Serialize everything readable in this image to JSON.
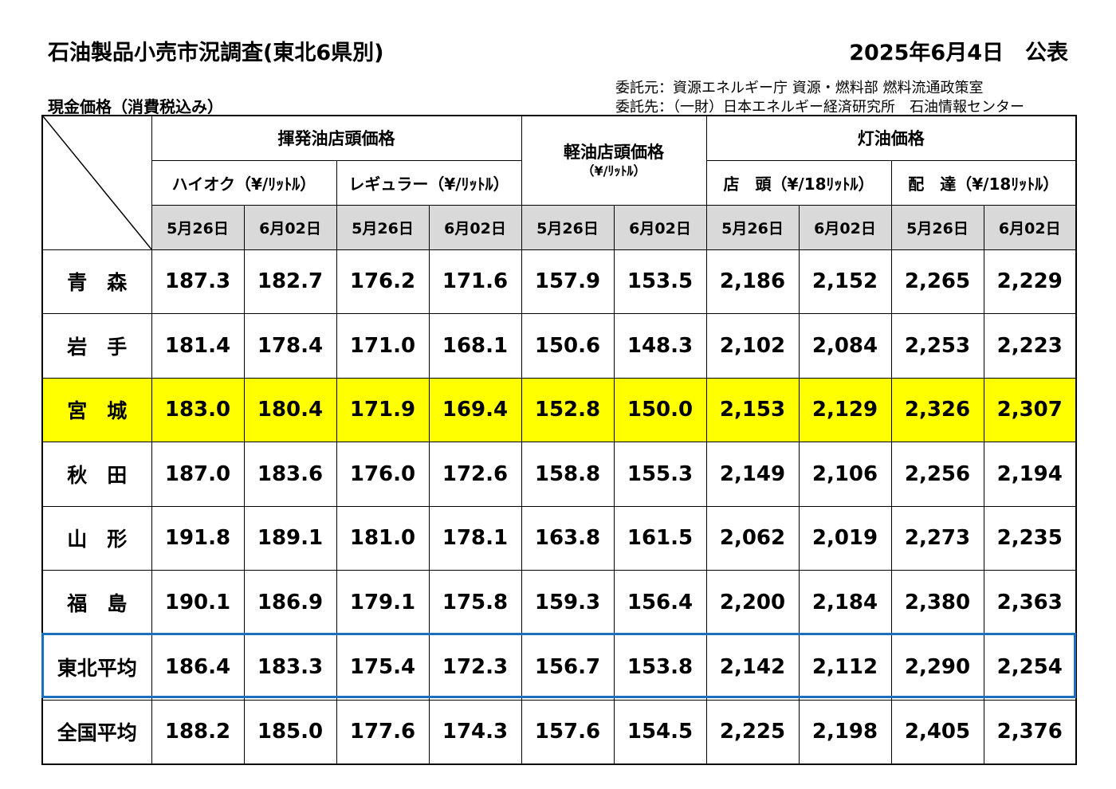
{
  "header": {
    "title": "石油製品小売市況調査(東北6県別)",
    "date": "2025年6月4日　公表",
    "subtitle": "現金価格（消費税込み）",
    "client": "委託元：資源エネルギー庁 資源・燃料部 燃料流通政策室",
    "contractor": "委託先：（一財）日本エネルギー経済研究所　石油情報センター"
  },
  "table": {
    "groups": {
      "gasoline": "揮発油店頭価格",
      "diesel": "軽油店頭価格",
      "diesel_unit": "（¥/ﾘｯﾄﾙ）",
      "kerosene": "灯油価格"
    },
    "subheaders": {
      "high_octane": "ハイオク（¥/ﾘｯﾄﾙ）",
      "regular": "レギュラー（¥/ﾘｯﾄﾙ）",
      "kerosene_store": "店　頭（¥/18ﾘｯﾄﾙ）",
      "kerosene_delivery": "配　達（¥/18ﾘｯﾄﾙ）"
    },
    "dates": [
      "5月26日",
      "6月02日",
      "5月26日",
      "6月02日",
      "5月26日",
      "6月02日",
      "5月26日",
      "6月02日",
      "5月26日",
      "6月02日"
    ],
    "rows": [
      {
        "name": "青　森",
        "values": [
          "187.3",
          "182.7",
          "176.2",
          "171.6",
          "157.9",
          "153.5",
          "2,186",
          "2,152",
          "2,265",
          "2,229"
        ]
      },
      {
        "name": "岩　手",
        "values": [
          "181.4",
          "178.4",
          "171.0",
          "168.1",
          "150.6",
          "148.3",
          "2,102",
          "2,084",
          "2,253",
          "2,223"
        ]
      },
      {
        "name": "宮　城",
        "values": [
          "183.0",
          "180.4",
          "171.9",
          "169.4",
          "152.8",
          "150.0",
          "2,153",
          "2,129",
          "2,326",
          "2,307"
        ]
      },
      {
        "name": "秋　田",
        "values": [
          "187.0",
          "183.6",
          "176.0",
          "172.6",
          "158.8",
          "155.3",
          "2,149",
          "2,106",
          "2,256",
          "2,194"
        ]
      },
      {
        "name": "山　形",
        "values": [
          "191.8",
          "189.1",
          "181.0",
          "178.1",
          "163.8",
          "161.5",
          "2,062",
          "2,019",
          "2,273",
          "2,235"
        ]
      },
      {
        "name": "福　島",
        "values": [
          "190.1",
          "186.9",
          "179.1",
          "175.8",
          "159.3",
          "156.4",
          "2,200",
          "2,184",
          "2,380",
          "2,363"
        ]
      },
      {
        "name": "東北平均",
        "values": [
          "186.4",
          "183.3",
          "175.4",
          "172.3",
          "156.7",
          "153.8",
          "2,142",
          "2,112",
          "2,290",
          "2,254"
        ]
      },
      {
        "name": "全国平均",
        "values": [
          "188.2",
          "185.0",
          "177.6",
          "174.3",
          "157.6",
          "154.5",
          "2,225",
          "2,198",
          "2,405",
          "2,376"
        ]
      }
    ]
  },
  "colors": {
    "highlight_row": "#ffff00",
    "date_header_bg": "#d9d9d9",
    "tohoku_box": "#1b6fbd"
  }
}
